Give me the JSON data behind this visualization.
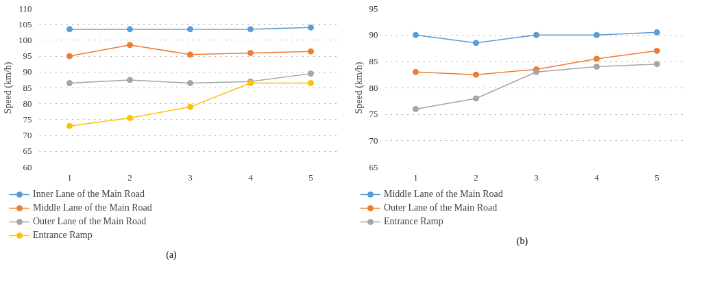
{
  "chart_data": [
    {
      "type": "line",
      "categories": [
        "1",
        "2",
        "3",
        "4",
        "5"
      ],
      "ylabel": "Speed (km/h)",
      "ylim": [
        60,
        110
      ],
      "yticks": [
        60,
        65,
        70,
        75,
        80,
        85,
        90,
        95,
        100,
        105,
        110
      ],
      "grid": "y",
      "legend": "bottom",
      "marker": "circle",
      "annotations": [
        "(a)"
      ],
      "series": [
        {
          "name": "Inner Lane of the Main Road",
          "color": "#5b9bd5",
          "values": [
            103.5,
            103.5,
            103.5,
            103.5,
            104
          ]
        },
        {
          "name": "Middle Lane of the Main Road",
          "color": "#ed7d31",
          "values": [
            95,
            98.5,
            95.5,
            96,
            96.5
          ]
        },
        {
          "name": "Outer Lane of the Main Road",
          "color": "#a5a5a5",
          "values": [
            86.5,
            87.5,
            86.5,
            87,
            89.5
          ]
        },
        {
          "name": "Entrance Ramp",
          "color": "#ffc000",
          "values": [
            73,
            75.5,
            79,
            86.5,
            86.5
          ]
        }
      ]
    },
    {
      "type": "line",
      "categories": [
        "1",
        "2",
        "3",
        "4",
        "5"
      ],
      "ylabel": "Speed (km/h)",
      "ylim": [
        65,
        95
      ],
      "yticks": [
        65,
        70,
        75,
        80,
        85,
        90,
        95
      ],
      "grid": "y",
      "legend": "bottom",
      "marker": "circle",
      "annotations": [
        "(b)"
      ],
      "series": [
        {
          "name": "Middle Lane of the Main Road",
          "color": "#5b9bd5",
          "values": [
            90,
            88.5,
            90,
            90,
            90.5
          ]
        },
        {
          "name": "Outer Lane of the Main Road",
          "color": "#ed7d31",
          "values": [
            83,
            82.5,
            83.5,
            85.5,
            87
          ]
        },
        {
          "name": "Entrance Ramp",
          "color": "#a5a5a5",
          "values": [
            76,
            78,
            83,
            84,
            84.5
          ]
        }
      ]
    }
  ]
}
